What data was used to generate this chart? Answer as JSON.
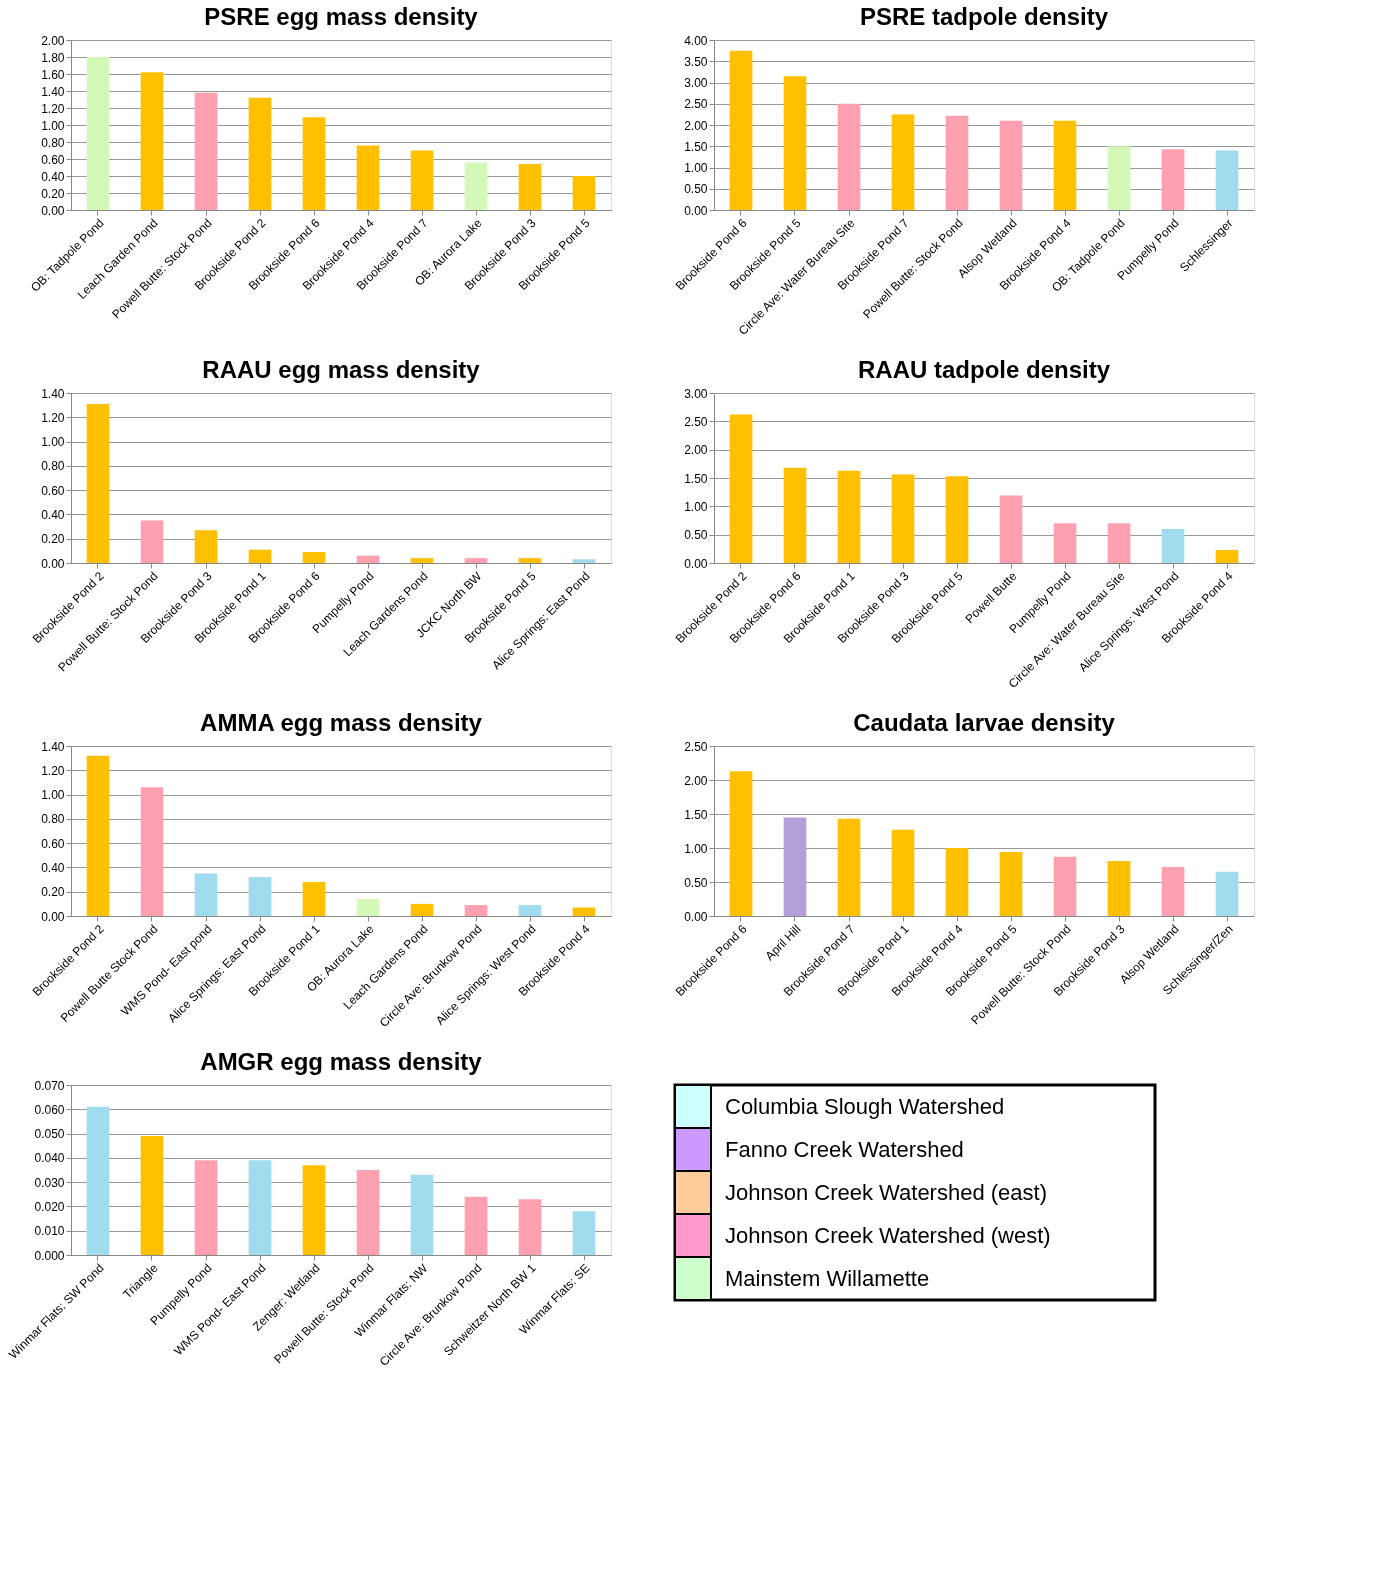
{
  "chart_data": [
    {
      "type": "bar",
      "title": "PSRE egg mass density",
      "grid": "y",
      "categories": [
        "OB: Tadpole Pond",
        "Leach Garden Pond",
        "Powell Butte: Stock Pond",
        "Brookside Pond 2",
        "Brookside Pond 6",
        "Brookside Pond 4",
        "Brookside Pond 7",
        "OB: Aurora Lake",
        "Brookside Pond 3",
        "Brookside Pond 5"
      ],
      "values": [
        1.8,
        1.62,
        1.38,
        1.32,
        1.09,
        0.76,
        0.7,
        0.56,
        0.54,
        0.4
      ],
      "colors": [
        "#d4f8b8",
        "#ffc000",
        "#ffa0b0",
        "#ffc000",
        "#ffc000",
        "#ffc000",
        "#ffc000",
        "#d4f8b8",
        "#ffc000",
        "#ffc000"
      ],
      "ylim": [
        0,
        2.0
      ],
      "yticks": [
        {
          "value": 0,
          "label": "0.00"
        },
        {
          "value": 0.2,
          "label": "0.20"
        },
        {
          "value": 0.4,
          "label": "0.40"
        },
        {
          "value": 0.6,
          "label": "0.60"
        },
        {
          "value": 0.8,
          "label": "0.80"
        },
        {
          "value": 1.0,
          "label": "1.00"
        },
        {
          "value": 1.2,
          "label": "1.20"
        },
        {
          "value": 1.4,
          "label": "1.40"
        },
        {
          "value": 1.6,
          "label": "1.60"
        },
        {
          "value": 1.8,
          "label": "1.80"
        },
        {
          "value": 2.0,
          "label": "2.00"
        }
      ]
    },
    {
      "type": "bar",
      "title": "PSRE tadpole density",
      "grid": "y",
      "categories": [
        "Brookside Pond 6",
        "Brookside Pond 5",
        "Circle Ave: Water Bureau Site",
        "Brookside Pond 7",
        "Powell Butte: Stock Pond",
        "Alsop Wetland",
        "Brookside Pond 4",
        "OB: Tadpole Pond",
        "Pumpelly Pond",
        "Schlessinger"
      ],
      "values": [
        3.75,
        3.15,
        2.5,
        2.25,
        2.22,
        2.1,
        2.1,
        1.5,
        1.43,
        1.4
      ],
      "colors": [
        "#ffc000",
        "#ffc000",
        "#ffa0b0",
        "#ffc000",
        "#ffa0b0",
        "#ffa0b0",
        "#ffc000",
        "#d4f8b8",
        "#ffa0b0",
        "#a0dced"
      ],
      "ylim": [
        0,
        4.0
      ],
      "yticks": [
        {
          "value": 0,
          "label": "0.00"
        },
        {
          "value": 0.5,
          "label": "0.50"
        },
        {
          "value": 1.0,
          "label": "1.00"
        },
        {
          "value": 1.5,
          "label": "1.50"
        },
        {
          "value": 2.0,
          "label": "2.00"
        },
        {
          "value": 2.5,
          "label": "2.50"
        },
        {
          "value": 3.0,
          "label": "3.00"
        },
        {
          "value": 3.5,
          "label": "3.50"
        },
        {
          "value": 4.0,
          "label": "4.00"
        }
      ]
    },
    {
      "type": "bar",
      "title": "RAAU egg mass density",
      "grid": "y",
      "categories": [
        "Brookside Pond 2",
        "Powell Butte: Stock Pond",
        "Brookside Pond 3",
        "Brookside Pond 1",
        "Brookside Pond 6",
        "Pumpelly Pond",
        "Leach Gardens Pond",
        "JCKC North BW",
        "Brookside Pond 5",
        "Alice Springs: East Pond"
      ],
      "values": [
        1.31,
        0.35,
        0.27,
        0.11,
        0.09,
        0.06,
        0.04,
        0.04,
        0.04,
        0.03
      ],
      "colors": [
        "#ffc000",
        "#ffa0b0",
        "#ffc000",
        "#ffc000",
        "#ffc000",
        "#ffa0b0",
        "#ffc000",
        "#ffa0b0",
        "#ffc000",
        "#a0dced"
      ],
      "ylim": [
        0,
        1.4
      ],
      "yticks": [
        {
          "value": 0,
          "label": "0.00"
        },
        {
          "value": 0.2,
          "label": "0.20"
        },
        {
          "value": 0.4,
          "label": "0.40"
        },
        {
          "value": 0.6,
          "label": "0.60"
        },
        {
          "value": 0.8,
          "label": "0.80"
        },
        {
          "value": 1.0,
          "label": "1.00"
        },
        {
          "value": 1.2,
          "label": "1.20"
        },
        {
          "value": 1.4,
          "label": "1.40"
        }
      ]
    },
    {
      "type": "bar",
      "title": "RAAU tadpole density",
      "grid": "y",
      "categories": [
        "Brookside Pond 2",
        "Brookside Pond 6",
        "Brookside Pond 1",
        "Brookside Pond 3",
        "Brookside Pond 5",
        "Powell Butte",
        "Pumpelly Pond",
        "Circle Ave: Water Bureau Site",
        "Alice Springs: West Pond",
        "Brookside Pond 4"
      ],
      "values": [
        2.62,
        1.68,
        1.63,
        1.56,
        1.53,
        1.19,
        0.7,
        0.7,
        0.6,
        0.23
      ],
      "colors": [
        "#ffc000",
        "#ffc000",
        "#ffc000",
        "#ffc000",
        "#ffc000",
        "#ffa0b0",
        "#ffa0b0",
        "#ffa0b0",
        "#a0dced",
        "#ffc000"
      ],
      "ylim": [
        0,
        3.0
      ],
      "yticks": [
        {
          "value": 0,
          "label": "0.00"
        },
        {
          "value": 0.5,
          "label": "0.50"
        },
        {
          "value": 1.0,
          "label": "1.00"
        },
        {
          "value": 1.5,
          "label": "1.50"
        },
        {
          "value": 2.0,
          "label": "2.00"
        },
        {
          "value": 2.5,
          "label": "2.50"
        },
        {
          "value": 3.0,
          "label": "3.00"
        }
      ]
    },
    {
      "type": "bar",
      "title": "AMMA egg mass density",
      "grid": "y",
      "categories": [
        "Brookside Pond 2",
        "Powell Butte Stock Pond",
        "WMS Pond- East pond",
        "Alice Springs: East Pond",
        "Brookside Pond 1",
        "OB: Aurora Lake",
        "Leach Gardens Pond",
        "Circle Ave: Brunkow Pond",
        "Alice Springs: West Pond",
        "Brookside Pond 4"
      ],
      "values": [
        1.32,
        1.06,
        0.35,
        0.32,
        0.28,
        0.14,
        0.1,
        0.09,
        0.09,
        0.07
      ],
      "colors": [
        "#ffc000",
        "#ffa0b0",
        "#a0dced",
        "#a0dced",
        "#ffc000",
        "#d4f8b8",
        "#ffc000",
        "#ffa0b0",
        "#a0dced",
        "#ffc000"
      ],
      "ylim": [
        0,
        1.4
      ],
      "yticks": [
        {
          "value": 0,
          "label": "0.00"
        },
        {
          "value": 0.2,
          "label": "0.20"
        },
        {
          "value": 0.4,
          "label": "0.40"
        },
        {
          "value": 0.6,
          "label": "0.60"
        },
        {
          "value": 0.8,
          "label": "0.80"
        },
        {
          "value": 1.0,
          "label": "1.00"
        },
        {
          "value": 1.2,
          "label": "1.20"
        },
        {
          "value": 1.4,
          "label": "1.40"
        }
      ]
    },
    {
      "type": "bar",
      "title": "Caudata larvae density",
      "grid": "y",
      "categories": [
        "Brookside Pond 6",
        "April Hill",
        "Brookside Pond 7",
        "Brookside Pond 1",
        "Brookside Pond 4",
        "Brookside Pond 5",
        "Powell Butte: Stock Pond",
        "Brookside Pond 3",
        "Alsop Wetland",
        "Schlessinger/Zen"
      ],
      "values": [
        2.13,
        1.45,
        1.43,
        1.27,
        1.0,
        0.94,
        0.87,
        0.81,
        0.72,
        0.65
      ],
      "colors": [
        "#ffc000",
        "#b4a0d8",
        "#ffc000",
        "#ffc000",
        "#ffc000",
        "#ffc000",
        "#ffa0b0",
        "#ffc000",
        "#ffa0b0",
        "#a0dced"
      ],
      "ylim": [
        0,
        2.5
      ],
      "yticks": [
        {
          "value": 0,
          "label": "0.00"
        },
        {
          "value": 0.5,
          "label": "0.50"
        },
        {
          "value": 1.0,
          "label": "1.00"
        },
        {
          "value": 1.5,
          "label": "1.50"
        },
        {
          "value": 2.0,
          "label": "2.00"
        },
        {
          "value": 2.5,
          "label": "2.50"
        }
      ]
    },
    {
      "type": "bar",
      "title": "AMGR egg mass density",
      "grid": "y",
      "categories": [
        "Winmar Flats: SW Pond",
        "Triangle",
        "Pumpelly Pond",
        "WMS Pond- East Pond",
        "Zenger: Wetland",
        "Powell Butte: Stock Pond",
        "Winmar Flats: NW",
        "Circle Ave: Brunkow Pond",
        "Schweitzer North BW 1",
        "Winmar Flats: SE"
      ],
      "values": [
        0.061,
        0.049,
        0.039,
        0.039,
        0.037,
        0.035,
        0.033,
        0.024,
        0.023,
        0.018
      ],
      "colors": [
        "#a0dced",
        "#ffc000",
        "#ffa0b0",
        "#a0dced",
        "#ffc000",
        "#ffa0b0",
        "#a0dced",
        "#ffa0b0",
        "#ffa0b0",
        "#a0dced"
      ],
      "ylim": [
        0,
        0.07
      ],
      "yticks": [
        {
          "value": 0,
          "label": "0.000"
        },
        {
          "value": 0.01,
          "label": "0.010"
        },
        {
          "value": 0.02,
          "label": "0.020"
        },
        {
          "value": 0.03,
          "label": "0.030"
        },
        {
          "value": 0.04,
          "label": "0.040"
        },
        {
          "value": 0.05,
          "label": "0.050"
        },
        {
          "value": 0.06,
          "label": "0.060"
        },
        {
          "value": 0.07,
          "label": "0.070"
        }
      ]
    },
    {
      "type": "other",
      "categories": [
        "Columbia Slough Watershed",
        "Fanno Creek Watershed",
        "Johnson Creek Watershed (east)",
        "Johnson Creek Watershed (west)",
        "Mainstem Willamette"
      ],
      "colors": [
        "#ccffff",
        "#cc99ff",
        "#ffcc99",
        "#ff99cc",
        "#ccffcc"
      ]
    }
  ]
}
